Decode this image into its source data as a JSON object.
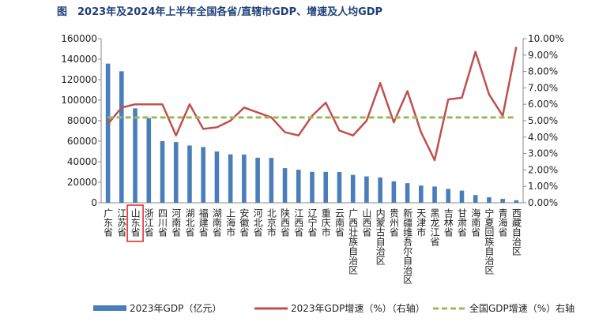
{
  "chart_data": {
    "type": "bar-line",
    "title": "图　2023年及2024年上半年全国各省/直辖市GDP、增速及人均GDP",
    "categories": [
      "广东省",
      "江苏省",
      "山东省",
      "浙江省",
      "四川省",
      "河南省",
      "湖北省",
      "福建省",
      "湖南省",
      "上海市",
      "安徽省",
      "河北省",
      "北京市",
      "陕西省",
      "江西省",
      "辽宁省",
      "重庆市",
      "云南省",
      "广西壮族自治区",
      "山西省",
      "内蒙古自治区",
      "贵州省",
      "新疆维吾尔自治区",
      "天津市",
      "黑龙江省",
      "吉林省",
      "甘肃省",
      "海南省",
      "宁夏回族自治区",
      "青海省",
      "西藏自治区"
    ],
    "series": [
      {
        "name": "2023年GDP（亿元）",
        "type": "bar",
        "color": "#4a7ebb",
        "values": [
          135673,
          128222,
          92069,
          82553,
          60133,
          59132,
          55804,
          54355,
          50013,
          47219,
          47051,
          43944,
          43761,
          33786,
          32200,
          30209,
          30146,
          30021,
          27202,
          25698,
          24627,
          20913,
          19126,
          16737,
          15884,
          13531,
          11864,
          7551,
          5315,
          3799,
          2393
        ]
      },
      {
        "name": "2023年GDP增速（%）（右轴）",
        "type": "line",
        "axis": "y2",
        "color": "#c0504d",
        "values": [
          4.8,
          5.8,
          6.0,
          6.0,
          6.0,
          4.1,
          6.0,
          4.5,
          4.6,
          5.0,
          5.8,
          5.5,
          5.2,
          4.3,
          4.1,
          5.3,
          6.1,
          4.4,
          4.1,
          5.0,
          7.3,
          4.9,
          6.8,
          4.3,
          2.6,
          6.3,
          6.4,
          9.2,
          6.6,
          5.3,
          9.5
        ]
      },
      {
        "name": "全国GDP增速（%）右轴",
        "type": "hline",
        "axis": "y2",
        "color": "#9bbb59",
        "value": 5.2
      }
    ],
    "ylim": [
      0,
      160000
    ],
    "yticks": [
      0,
      20000,
      40000,
      60000,
      80000,
      100000,
      120000,
      140000,
      160000
    ],
    "y2lim": [
      0,
      10
    ],
    "y2ticks": [
      {
        "value": 0,
        "label": "0.00%"
      },
      {
        "value": 1,
        "label": "1.00%"
      },
      {
        "value": 2,
        "label": "2.00%"
      },
      {
        "value": 3,
        "label": "3.00%"
      },
      {
        "value": 4,
        "label": "4.00%"
      },
      {
        "value": 5,
        "label": "5.00%"
      },
      {
        "value": 6,
        "label": "6.00%"
      },
      {
        "value": 7,
        "label": "7.00%"
      },
      {
        "value": 8,
        "label": "8.00%"
      },
      {
        "value": 9,
        "label": "9.00%"
      },
      {
        "value": 10,
        "label": "10.00%"
      }
    ],
    "highlight_category": 2
  }
}
